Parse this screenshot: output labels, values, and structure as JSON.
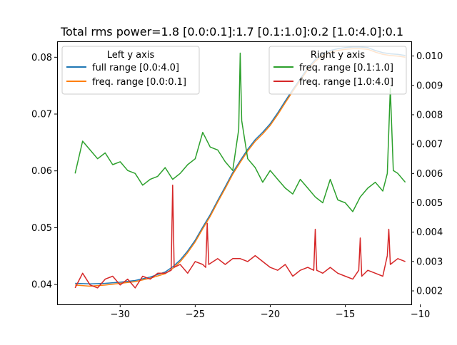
{
  "chart_data": {
    "type": "line",
    "title": "Total rms power=1.8 [0.0:0.1]:1.7  [0.1:1.0]:0.2  [1.0:4.0]:0.1",
    "xlabel": "",
    "ylabel_left": "",
    "ylabel_right": "",
    "xlim": [
      -34.2,
      -10.6
    ],
    "ylim_left": [
      0.0365,
      0.0828
    ],
    "ylim_right": [
      0.00154,
      0.0105
    ],
    "x_ticks": [
      -30,
      -25,
      -20,
      -15,
      -10
    ],
    "x_tick_labels": [
      "−30",
      "−25",
      "−20",
      "−15",
      "−10"
    ],
    "y_left_ticks": [
      0.04,
      0.05,
      0.06,
      0.07,
      0.08
    ],
    "y_left_tick_labels": [
      "0.04",
      "0.05",
      "0.06",
      "0.07",
      "0.08"
    ],
    "y_right_ticks": [
      0.002,
      0.003,
      0.004,
      0.005,
      0.006,
      0.007,
      0.008,
      0.009,
      0.01
    ],
    "y_right_tick_labels": [
      "0.002",
      "0.003",
      "0.004",
      "0.005",
      "0.006",
      "0.007",
      "0.008",
      "0.009",
      "0.010"
    ],
    "grid": false,
    "legends": [
      {
        "title": "Left y axis",
        "placement": "upper-left",
        "entries": [
          {
            "label": "full range [0.0:4.0]",
            "color": "#1f77b4"
          },
          {
            "label": "freq. range [0.0:0.1]",
            "color": "#ff7f0e"
          }
        ]
      },
      {
        "title": "Right y axis",
        "placement": "upper-right",
        "entries": [
          {
            "label": "freq. range [0.1:1.0]",
            "color": "#2ca02c"
          },
          {
            "label": "freq. range [1.0:4.0]",
            "color": "#d62728"
          }
        ]
      }
    ],
    "series": [
      {
        "name": "full range [0.0:4.0]",
        "axis": "left",
        "color": "#1f77b4",
        "x": [
          -33,
          -32,
          -31,
          -30,
          -29,
          -28,
          -27,
          -26.5,
          -26,
          -25.5,
          -25,
          -24.5,
          -24,
          -23.5,
          -23,
          -22.5,
          -22,
          -21.5,
          -21,
          -20.5,
          -20,
          -19.5,
          -19,
          -18.5,
          -18,
          -17.5,
          -17,
          -16.5,
          -16,
          -15.5,
          -15,
          -14.5,
          -14,
          -13.5,
          -13,
          -12.5,
          -12,
          -11.5,
          -11
        ],
        "y": [
          0.0402,
          0.0401,
          0.0402,
          0.0404,
          0.0407,
          0.0413,
          0.0422,
          0.0431,
          0.0443,
          0.0459,
          0.0478,
          0.0501,
          0.0523,
          0.0548,
          0.0572,
          0.0597,
          0.0618,
          0.0638,
          0.0655,
          0.0668,
          0.0683,
          0.0702,
          0.0723,
          0.0743,
          0.0762,
          0.0781,
          0.0796,
          0.0806,
          0.0812,
          0.0815,
          0.0817,
          0.0818,
          0.0818,
          0.0817,
          0.0812,
          0.0808,
          0.0806,
          0.0805,
          0.0803
        ]
      },
      {
        "name": "freq. range [0.0:0.1]",
        "axis": "left",
        "color": "#ff7f0e",
        "x": [
          -33,
          -32,
          -31,
          -30,
          -29,
          -28,
          -27,
          -26.5,
          -26,
          -25.5,
          -25,
          -24.5,
          -24,
          -23.5,
          -23,
          -22.5,
          -22,
          -21.5,
          -21,
          -20.5,
          -20,
          -19.5,
          -19,
          -18.5,
          -18,
          -17.5,
          -17,
          -16.5,
          -16,
          -15.5,
          -15,
          -14.5,
          -14,
          -13.5,
          -13,
          -12.5,
          -12,
          -11.5,
          -11
        ],
        "y": [
          0.0399,
          0.0397,
          0.0399,
          0.0402,
          0.0405,
          0.0411,
          0.0419,
          0.0428,
          0.044,
          0.0456,
          0.0475,
          0.0498,
          0.052,
          0.0545,
          0.0569,
          0.0594,
          0.0615,
          0.0635,
          0.0652,
          0.0665,
          0.068,
          0.0699,
          0.072,
          0.074,
          0.0759,
          0.0778,
          0.0793,
          0.0803,
          0.0809,
          0.0812,
          0.0814,
          0.0815,
          0.0815,
          0.0814,
          0.0809,
          0.0805,
          0.0803,
          0.0802,
          0.08
        ]
      },
      {
        "name": "freq. range [0.1:1.0]",
        "axis": "right",
        "color": "#2ca02c",
        "x": [
          -33,
          -32.5,
          -32,
          -31.5,
          -31,
          -30.5,
          -30,
          -29.5,
          -29,
          -28.5,
          -28,
          -27.5,
          -27,
          -26.5,
          -26,
          -25.5,
          -25,
          -24.5,
          -24,
          -23.5,
          -23,
          -22.5,
          -22.1,
          -22,
          -21.9,
          -21.5,
          -21,
          -20.5,
          -20,
          -19.5,
          -19,
          -18.5,
          -18,
          -17.5,
          -17,
          -16.5,
          -16,
          -15.5,
          -15,
          -14.5,
          -14,
          -13.5,
          -13,
          -12.5,
          -12.2,
          -12,
          -11.8,
          -11.5,
          -11
        ],
        "y": [
          0.006,
          0.0071,
          0.0068,
          0.0065,
          0.0067,
          0.0063,
          0.0064,
          0.0061,
          0.006,
          0.0056,
          0.0058,
          0.0059,
          0.0062,
          0.0058,
          0.006,
          0.0063,
          0.0065,
          0.0074,
          0.0069,
          0.0068,
          0.0064,
          0.0061,
          0.0075,
          0.0101,
          0.0078,
          0.0065,
          0.0062,
          0.0057,
          0.0061,
          0.0058,
          0.0055,
          0.0053,
          0.0058,
          0.0055,
          0.0052,
          0.005,
          0.0058,
          0.0051,
          0.005,
          0.0047,
          0.0052,
          0.0055,
          0.0057,
          0.0054,
          0.006,
          0.0089,
          0.0061,
          0.006,
          0.0057
        ]
      },
      {
        "name": "freq. range [1.0:4.0]",
        "axis": "right",
        "color": "#d62728",
        "x": [
          -33,
          -32.5,
          -32,
          -31.5,
          -31,
          -30.5,
          -30,
          -29.5,
          -29,
          -28.5,
          -28,
          -27.5,
          -27,
          -26.6,
          -26.5,
          -26.4,
          -26,
          -25.5,
          -25,
          -24.5,
          -24.3,
          -24.2,
          -24.1,
          -23.5,
          -23,
          -22.5,
          -22,
          -21.5,
          -21,
          -20.5,
          -20,
          -19.5,
          -19,
          -18.5,
          -18,
          -17.5,
          -17.1,
          -17,
          -16.9,
          -16.5,
          -16,
          -15.5,
          -15,
          -14.5,
          -14.1,
          -14,
          -13.9,
          -13.5,
          -13,
          -12.5,
          -12.2,
          -12.1,
          -12,
          -11.5,
          -11
        ],
        "y": [
          0.0021,
          0.0026,
          0.0022,
          0.0021,
          0.0024,
          0.0025,
          0.0022,
          0.0024,
          0.0021,
          0.0025,
          0.0024,
          0.0026,
          0.0026,
          0.0027,
          0.0056,
          0.0028,
          0.0029,
          0.0026,
          0.003,
          0.0029,
          0.0028,
          0.0043,
          0.0029,
          0.0031,
          0.0029,
          0.0031,
          0.0031,
          0.003,
          0.0032,
          0.003,
          0.0028,
          0.0027,
          0.0029,
          0.0025,
          0.0027,
          0.0028,
          0.0027,
          0.0041,
          0.0027,
          0.0026,
          0.0028,
          0.0026,
          0.0025,
          0.0024,
          0.0027,
          0.0038,
          0.0025,
          0.0027,
          0.0026,
          0.0025,
          0.0032,
          0.0041,
          0.0029,
          0.0031,
          0.003
        ]
      }
    ]
  }
}
